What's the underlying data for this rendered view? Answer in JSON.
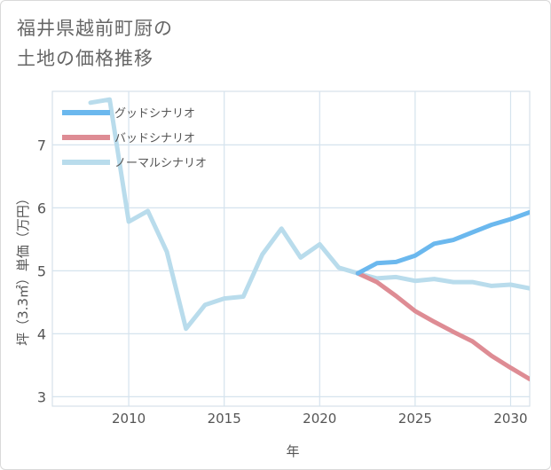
{
  "chart_data": {
    "type": "line",
    "title_lines": [
      "福井県越前町厨の",
      "土地の価格推移"
    ],
    "xlabel": "年",
    "ylabel": "坪（3.3㎡）単価（万円）",
    "xlim": [
      2006,
      2031
    ],
    "ylim": [
      2.85,
      7.85
    ],
    "xticks": [
      2010,
      2015,
      2020,
      2025,
      2030
    ],
    "yticks": [
      3,
      4,
      5,
      6,
      7
    ],
    "grid": true,
    "legend_position": "top-left",
    "series": [
      {
        "name": "グッドシナリオ",
        "color": "#6bb8ee",
        "x": [
          2022,
          2023,
          2024,
          2025,
          2026,
          2027,
          2028,
          2029,
          2030,
          2031
        ],
        "values": [
          4.96,
          5.12,
          5.14,
          5.24,
          5.43,
          5.49,
          5.61,
          5.73,
          5.82,
          5.93
        ]
      },
      {
        "name": "バッドシナリオ",
        "color": "#de8c94",
        "x": [
          2022,
          2023,
          2024,
          2025,
          2026,
          2027,
          2028,
          2029,
          2030,
          2031
        ],
        "values": [
          4.96,
          4.82,
          4.6,
          4.36,
          4.19,
          4.03,
          3.88,
          3.65,
          3.46,
          3.28
        ]
      },
      {
        "name": "ノーマルシナリオ",
        "color": "#b9dcec",
        "x": [
          2008,
          2009,
          2010,
          2011,
          2012,
          2013,
          2014,
          2015,
          2016,
          2017,
          2018,
          2019,
          2020,
          2021,
          2022,
          2023,
          2024,
          2025,
          2026,
          2027,
          2028,
          2029,
          2030,
          2031
        ],
        "values": [
          7.67,
          7.72,
          5.78,
          5.95,
          5.3,
          4.08,
          4.46,
          4.56,
          4.59,
          5.26,
          5.67,
          5.21,
          5.42,
          5.05,
          4.96,
          4.88,
          4.9,
          4.84,
          4.87,
          4.82,
          4.82,
          4.76,
          4.78,
          4.72
        ]
      }
    ]
  }
}
